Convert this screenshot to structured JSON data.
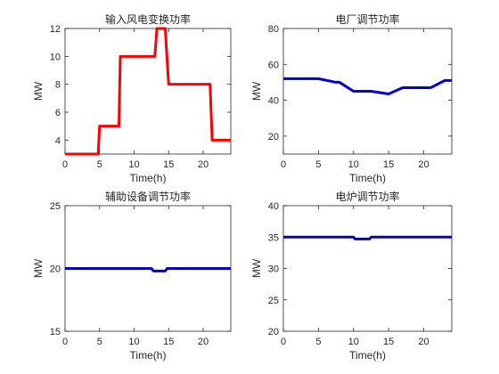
{
  "chart_data": [
    {
      "type": "line",
      "title": "输入风电变换功率",
      "xlabel": "Time(h)",
      "ylabel": "MW",
      "xlim": [
        0,
        24
      ],
      "ylim": [
        3,
        12
      ],
      "xticks": [
        0,
        5,
        10,
        15,
        20
      ],
      "yticks": [
        4,
        6,
        8,
        10,
        12
      ],
      "series": [
        {
          "color": "#ff0000",
          "x": [
            0,
            4.8,
            5.0,
            7.8,
            8.0,
            12.8,
            13.0,
            13.3,
            14.5,
            15.0,
            21.0,
            21.3,
            24
          ],
          "y": [
            3,
            3,
            5,
            5,
            10,
            10,
            10,
            12,
            12,
            8,
            8,
            4,
            4
          ]
        }
      ]
    },
    {
      "type": "line",
      "title": "电厂调节功率",
      "xlabel": "Time(h)",
      "ylabel": "MW",
      "xlim": [
        0,
        24
      ],
      "ylim": [
        10,
        80
      ],
      "xticks": [
        0,
        5,
        10,
        15,
        20
      ],
      "yticks": [
        20,
        40,
        60,
        80
      ],
      "series": [
        {
          "color": "#0000cc",
          "x": [
            0,
            5,
            7.5,
            8,
            10,
            12.5,
            15,
            17,
            21,
            23,
            24
          ],
          "y": [
            52,
            52,
            50,
            50,
            45,
            45,
            43.5,
            47,
            47,
            51,
            51
          ]
        }
      ]
    },
    {
      "type": "line",
      "title": "辅助设备调节功率",
      "xlabel": "Time(h)",
      "ylabel": "MW",
      "xlim": [
        0,
        24
      ],
      "ylim": [
        15,
        25
      ],
      "xticks": [
        0,
        5,
        10,
        15,
        20
      ],
      "yticks": [
        15,
        20,
        25
      ],
      "series": [
        {
          "color": "#0000cc",
          "x": [
            0,
            12.5,
            12.8,
            14.5,
            14.8,
            24
          ],
          "y": [
            20,
            20,
            19.8,
            19.8,
            20,
            20
          ]
        }
      ]
    },
    {
      "type": "line",
      "title": "电炉调节功率",
      "xlabel": "Time(h)",
      "ylabel": "MW",
      "xlim": [
        0,
        24
      ],
      "ylim": [
        20,
        40
      ],
      "xticks": [
        0,
        5,
        10,
        15,
        20
      ],
      "yticks": [
        20,
        25,
        30,
        35,
        40
      ],
      "series": [
        {
          "color": "#0000cc",
          "x": [
            0,
            10,
            10.2,
            12.3,
            12.5,
            24
          ],
          "y": [
            35,
            35,
            34.7,
            34.7,
            35,
            35
          ]
        }
      ]
    }
  ]
}
